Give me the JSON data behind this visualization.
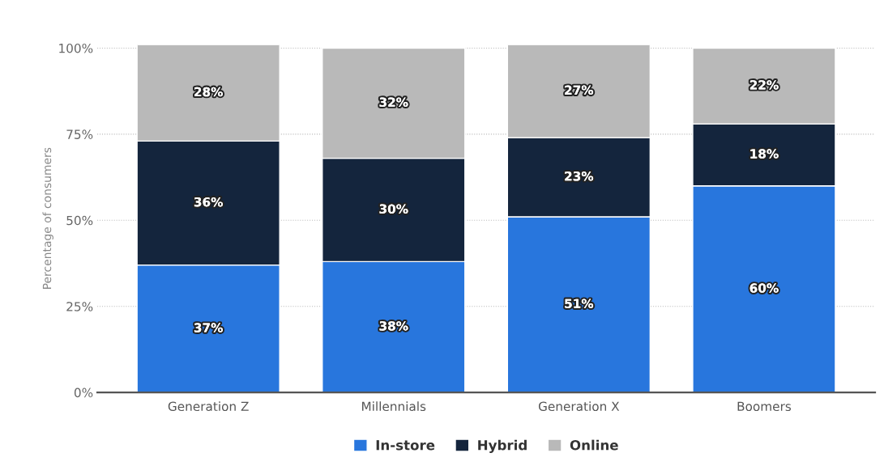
{
  "chart_data": {
    "type": "bar",
    "stacked": true,
    "ylabel": "Percentage of consumers",
    "categories": [
      "Generation Z",
      "Millennials",
      "Generation X",
      "Boomers"
    ],
    "series": [
      {
        "name": "In-store",
        "color": "#2876dd",
        "values": [
          37,
          38,
          51,
          60
        ],
        "value_labels": [
          "37%",
          "38%",
          "51%",
          "60%"
        ]
      },
      {
        "name": "Hybrid",
        "color": "#14253d",
        "values": [
          36,
          30,
          23,
          18
        ],
        "value_labels": [
          "36%",
          "30%",
          "23%",
          "18%"
        ]
      },
      {
        "name": "Online",
        "color": "#b9b9b9",
        "values": [
          28,
          32,
          27,
          22
        ],
        "value_labels": [
          "28%",
          "32%",
          "27%",
          "22%"
        ]
      }
    ],
    "ylim": [
      0,
      101
    ],
    "yticks": [
      {
        "value": 0,
        "label": "0%"
      },
      {
        "value": 25,
        "label": "25%"
      },
      {
        "value": 50,
        "label": "50%"
      },
      {
        "value": 75,
        "label": "75%"
      },
      {
        "value": 100,
        "label": "100%"
      }
    ],
    "grid": "y",
    "legend": "bottom"
  }
}
